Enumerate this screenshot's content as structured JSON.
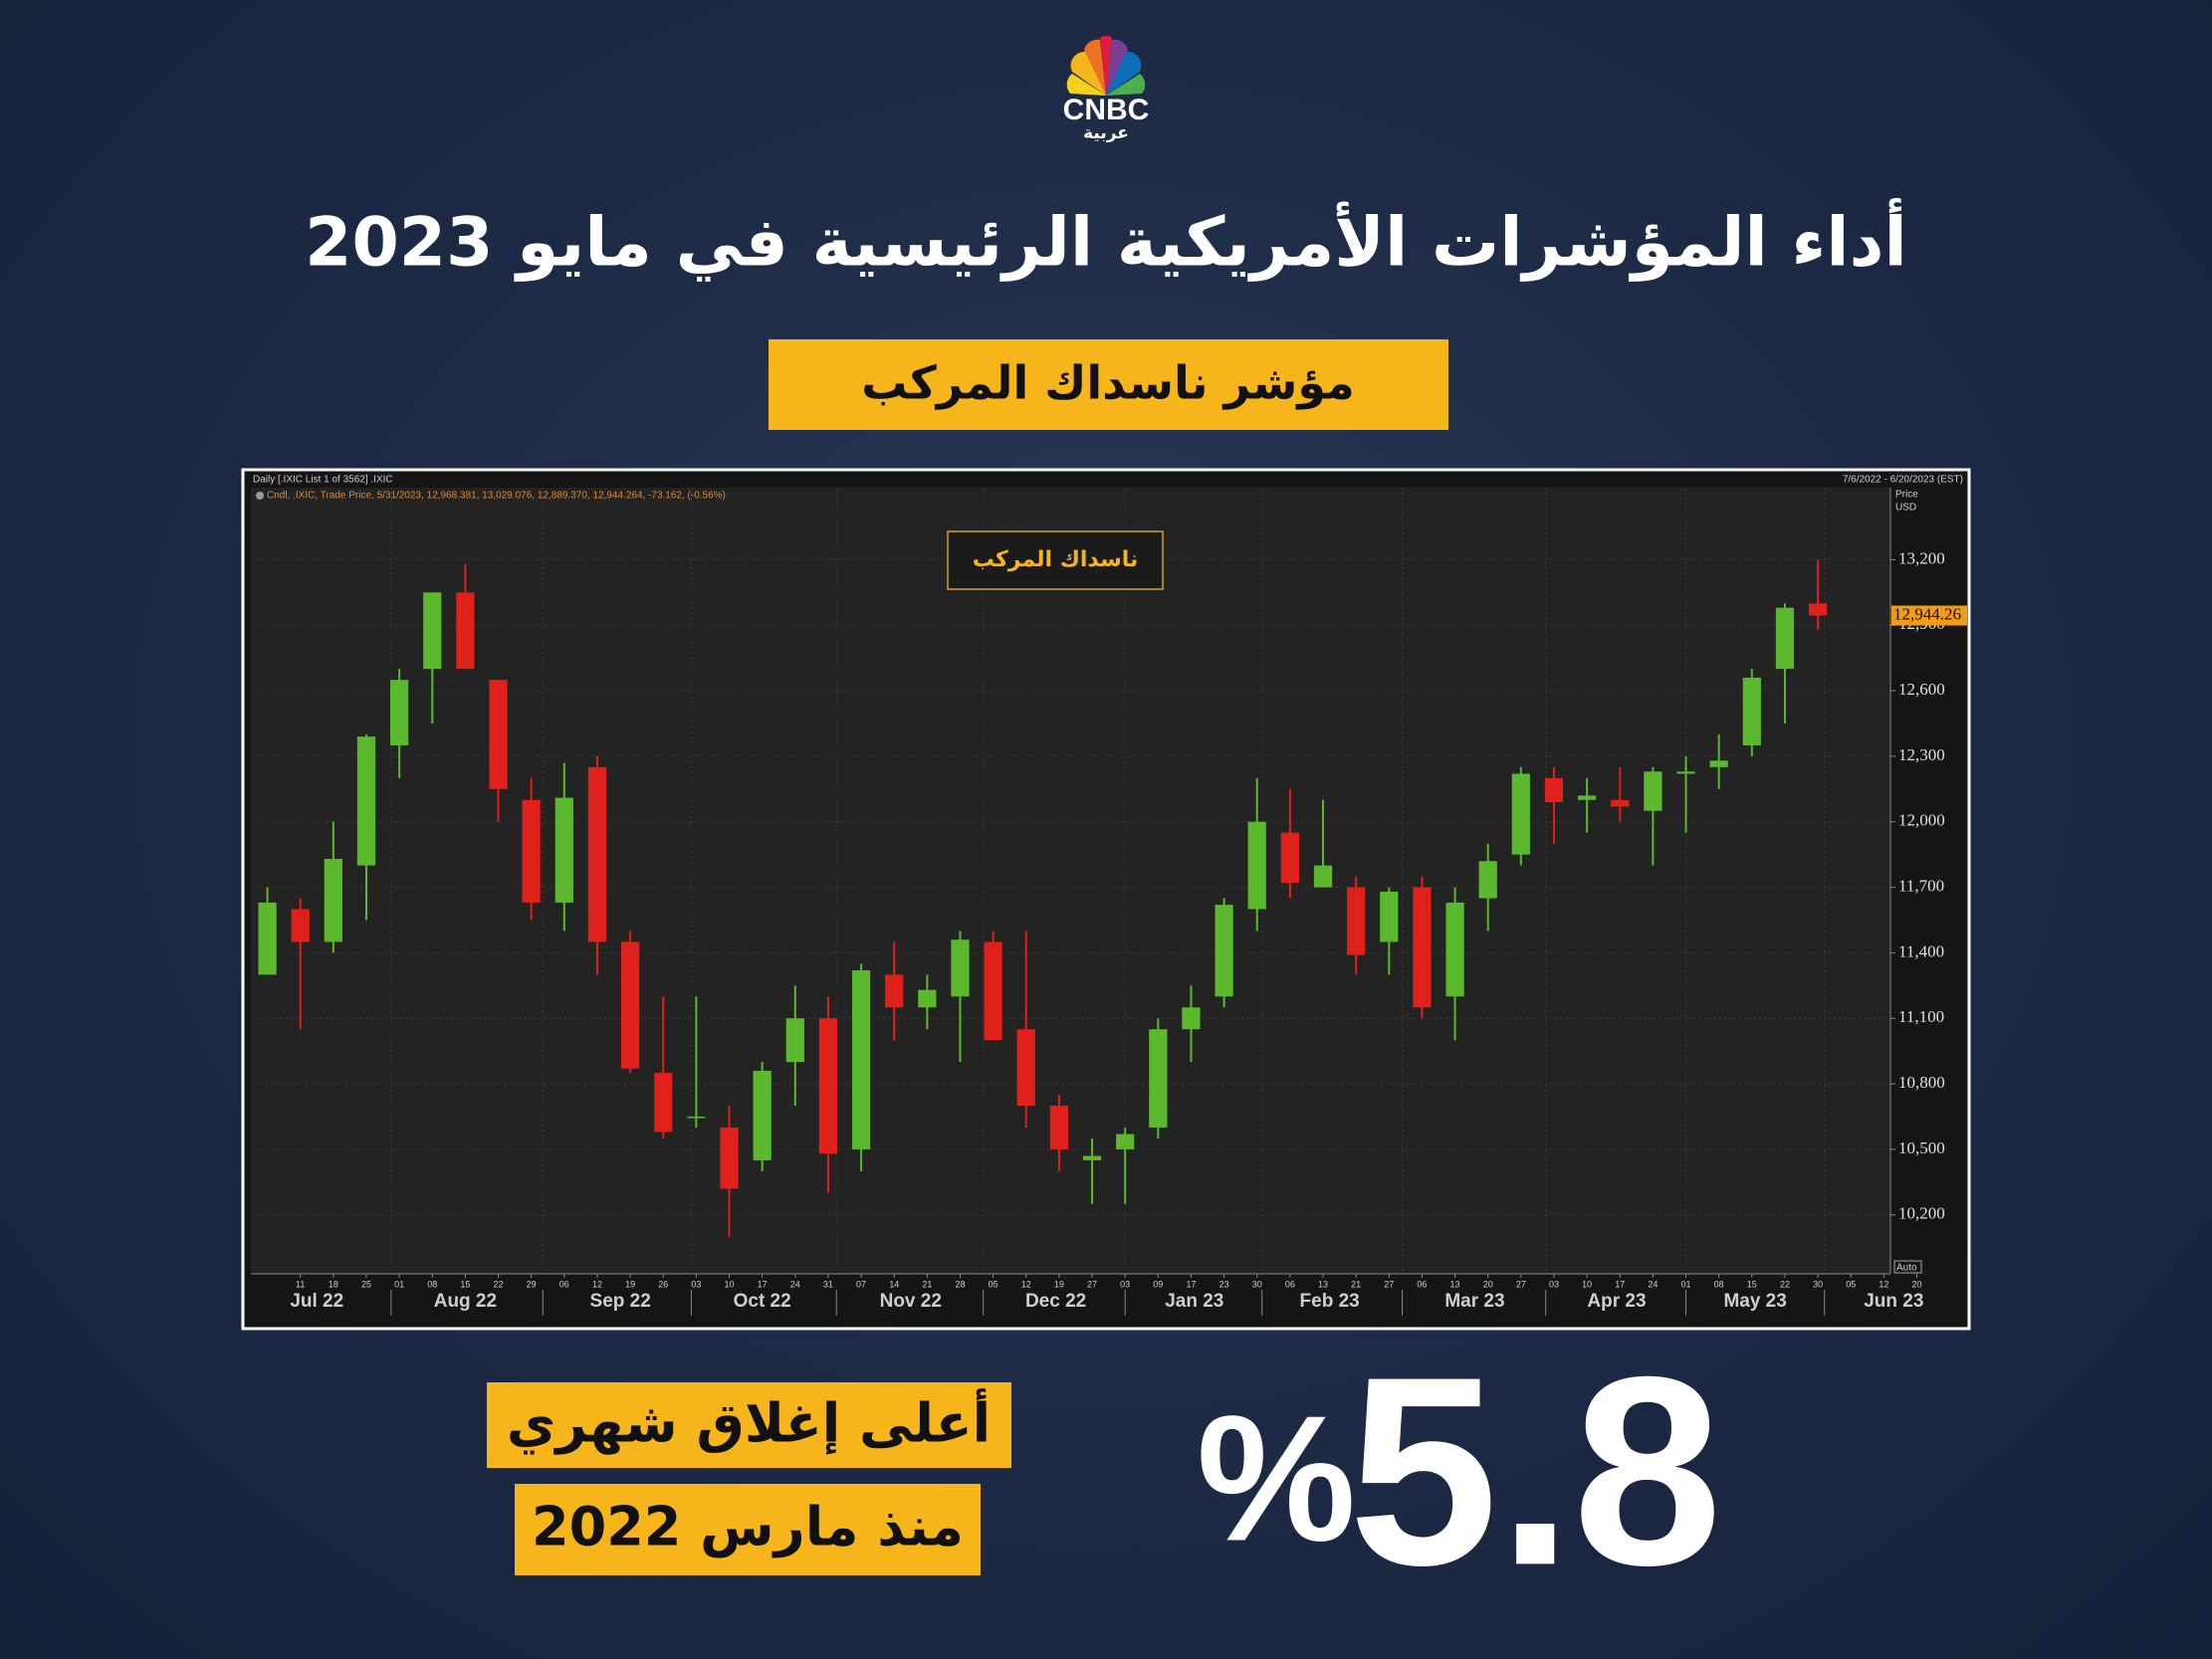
{
  "logo": {
    "name": "CNBC",
    "sub": "عربية"
  },
  "title": "أداء المؤشرات الأمريكية الرئيسية في مايو 2023",
  "subtitle": "مؤشر ناسداك المركب",
  "highlight": {
    "line1": "أعلى إغلاق شهري",
    "line2": "منذ مارس 2022",
    "value": 5.8,
    "unit": "%"
  },
  "chart_data": {
    "type": "candlestick",
    "header_left": "Daily [.IXIC List 1 of 3562] .IXIC",
    "header_right": "7/6/2022 - 6/20/2023 (EST)",
    "legend_text": "Cndl, .IXIC, Trade Price, 5/31/2023, 12,968.381, 13,029.076, 12,889.370, 12,944.264, -73.162, (-0.56%)",
    "axis_title": "Price",
    "currency": "USD",
    "scale_mode": "Auto",
    "inner_label": "ناسداك المركب",
    "last_price": {
      "value": 12944.26,
      "label": "12,944.26"
    },
    "up_color": "#5cb82c",
    "down_color": "#e0201b",
    "grid": true,
    "categories": [
      null,
      null,
      null,
      null,
      null,
      null,
      null,
      null,
      null,
      null,
      null,
      null,
      null,
      null,
      null,
      null,
      null,
      null,
      null,
      null,
      null,
      null,
      null,
      null,
      null,
      null,
      null,
      null,
      null,
      null,
      null,
      null,
      null,
      null,
      null,
      null,
      null,
      null,
      null,
      null,
      null,
      null,
      null,
      null,
      null,
      null,
      null,
      null
    ],
    "open": [
      11300,
      11600,
      11450,
      11800,
      12350,
      12700,
      13050,
      12650,
      12100,
      11630,
      12250,
      11450,
      10850,
      10650,
      10600,
      10450,
      10900,
      11100,
      10500,
      11300,
      11150,
      11200,
      11450,
      11050,
      10700,
      10450,
      10500,
      10600,
      11050,
      11200,
      11600,
      11950,
      11700,
      11700,
      11450,
      11700,
      11200,
      11650,
      11850,
      12200,
      12100,
      12100,
      12050,
      12220,
      12250,
      12350,
      12700,
      13000
    ],
    "high": [
      11700,
      11650,
      12000,
      12400,
      12700,
      13050,
      13180,
      12650,
      12200,
      12270,
      12300,
      11500,
      11200,
      11200,
      10700,
      10900,
      11250,
      11200,
      11350,
      11450,
      11300,
      11500,
      11500,
      11500,
      10750,
      10550,
      10600,
      11100,
      11250,
      11650,
      12200,
      12150,
      12100,
      11750,
      11700,
      11750,
      11700,
      11900,
      12250,
      12250,
      12200,
      12250,
      12250,
      12300,
      12400,
      12700,
      13000,
      13200
    ],
    "low": [
      11300,
      11050,
      11400,
      11550,
      12200,
      12450,
      12700,
      12000,
      11550,
      11500,
      11300,
      10850,
      10550,
      10600,
      10100,
      10400,
      10700,
      10300,
      10400,
      11000,
      11050,
      10900,
      11000,
      10600,
      10400,
      10250,
      10250,
      10550,
      10900,
      11150,
      11500,
      11650,
      11700,
      11300,
      11300,
      11100,
      11000,
      11500,
      11800,
      11900,
      11950,
      12000,
      11800,
      11950,
      12150,
      12300,
      12450,
      12880
    ],
    "close": [
      11630,
      11450,
      11830,
      12390,
      12650,
      13050,
      12700,
      12150,
      11630,
      12110,
      11450,
      10870,
      10580,
      10650,
      10320,
      10860,
      11100,
      10480,
      11320,
      11150,
      11230,
      11460,
      11000,
      10700,
      10500,
      10470,
      10570,
      11050,
      11150,
      11620,
      12000,
      11720,
      11800,
      11390,
      11680,
      11150,
      11630,
      11820,
      12220,
      12090,
      12120,
      12070,
      12230,
      12230,
      12280,
      12660,
      12980,
      12944.26
    ],
    "xlim": [
      -0.5,
      49.2
    ],
    "ylim": [
      9930,
      13530
    ],
    "yticks": [
      {
        "value": 10200,
        "label": "10,200"
      },
      {
        "value": 10500,
        "label": "10,500"
      },
      {
        "value": 10800,
        "label": "10,800"
      },
      {
        "value": 11100,
        "label": "11,100"
      },
      {
        "value": 11400,
        "label": "11,400"
      },
      {
        "value": 11700,
        "label": "11,700"
      },
      {
        "value": 12000,
        "label": "12,000"
      },
      {
        "value": 12300,
        "label": "12,300"
      },
      {
        "value": 12600,
        "label": "12,600"
      },
      {
        "value": 12900,
        "label": "12,900"
      },
      {
        "value": 13200,
        "label": "13,200"
      }
    ],
    "xticks": [
      {
        "value": 1,
        "label": "11"
      },
      {
        "value": 2,
        "label": "18"
      },
      {
        "value": 3,
        "label": "25"
      },
      {
        "value": 4,
        "label": "01"
      },
      {
        "value": 5,
        "label": "08"
      },
      {
        "value": 6,
        "label": "15"
      },
      {
        "value": 7,
        "label": "22"
      },
      {
        "value": 8,
        "label": "29"
      },
      {
        "value": 9,
        "label": "06"
      },
      {
        "value": 10,
        "label": "12"
      },
      {
        "value": 11,
        "label": "19"
      },
      {
        "value": 12,
        "label": "26"
      },
      {
        "value": 13,
        "label": "03"
      },
      {
        "value": 14,
        "label": "10"
      },
      {
        "value": 15,
        "label": "17"
      },
      {
        "value": 16,
        "label": "24"
      },
      {
        "value": 17,
        "label": "31"
      },
      {
        "value": 18,
        "label": "07"
      },
      {
        "value": 19,
        "label": "14"
      },
      {
        "value": 20,
        "label": "21"
      },
      {
        "value": 21,
        "label": "28"
      },
      {
        "value": 22,
        "label": "05"
      },
      {
        "value": 23,
        "label": "12"
      },
      {
        "value": 24,
        "label": "19"
      },
      {
        "value": 25,
        "label": "27"
      },
      {
        "value": 26,
        "label": "03"
      },
      {
        "value": 27,
        "label": "09"
      },
      {
        "value": 28,
        "label": "17"
      },
      {
        "value": 29,
        "label": "23"
      },
      {
        "value": 30,
        "label": "30"
      },
      {
        "value": 31,
        "label": "06"
      },
      {
        "value": 32,
        "label": "13"
      },
      {
        "value": 33,
        "label": "21"
      },
      {
        "value": 34,
        "label": "27"
      },
      {
        "value": 35,
        "label": "06"
      },
      {
        "value": 36,
        "label": "13"
      },
      {
        "value": 37,
        "label": "20"
      },
      {
        "value": 38,
        "label": "27"
      },
      {
        "value": 39,
        "label": "03"
      },
      {
        "value": 40,
        "label": "10"
      },
      {
        "value": 41,
        "label": "17"
      },
      {
        "value": 42,
        "label": "24"
      },
      {
        "value": 43,
        "label": "01"
      },
      {
        "value": 44,
        "label": "08"
      },
      {
        "value": 45,
        "label": "15"
      },
      {
        "value": 46,
        "label": "22"
      },
      {
        "value": 47,
        "label": "30"
      },
      {
        "value": 48,
        "label": "05"
      },
      {
        "value": 49,
        "label": "12"
      },
      {
        "value": 50,
        "label": "20"
      }
    ],
    "month_ticks": [
      {
        "value": 1.5,
        "label": "Jul 22"
      },
      {
        "value": 6,
        "label": "Aug 22"
      },
      {
        "value": 10.7,
        "label": "Sep 22"
      },
      {
        "value": 15,
        "label": "Oct 22"
      },
      {
        "value": 19.5,
        "label": "Nov 22"
      },
      {
        "value": 23.9,
        "label": "Dec 22"
      },
      {
        "value": 28.1,
        "label": "Jan 23"
      },
      {
        "value": 32.2,
        "label": "Feb 23"
      },
      {
        "value": 36.6,
        "label": "Mar 23"
      },
      {
        "value": 40.9,
        "label": "Apr 23"
      },
      {
        "value": 45.1,
        "label": "May 23"
      },
      {
        "value": 49.3,
        "label": "Jun 23"
      }
    ]
  }
}
